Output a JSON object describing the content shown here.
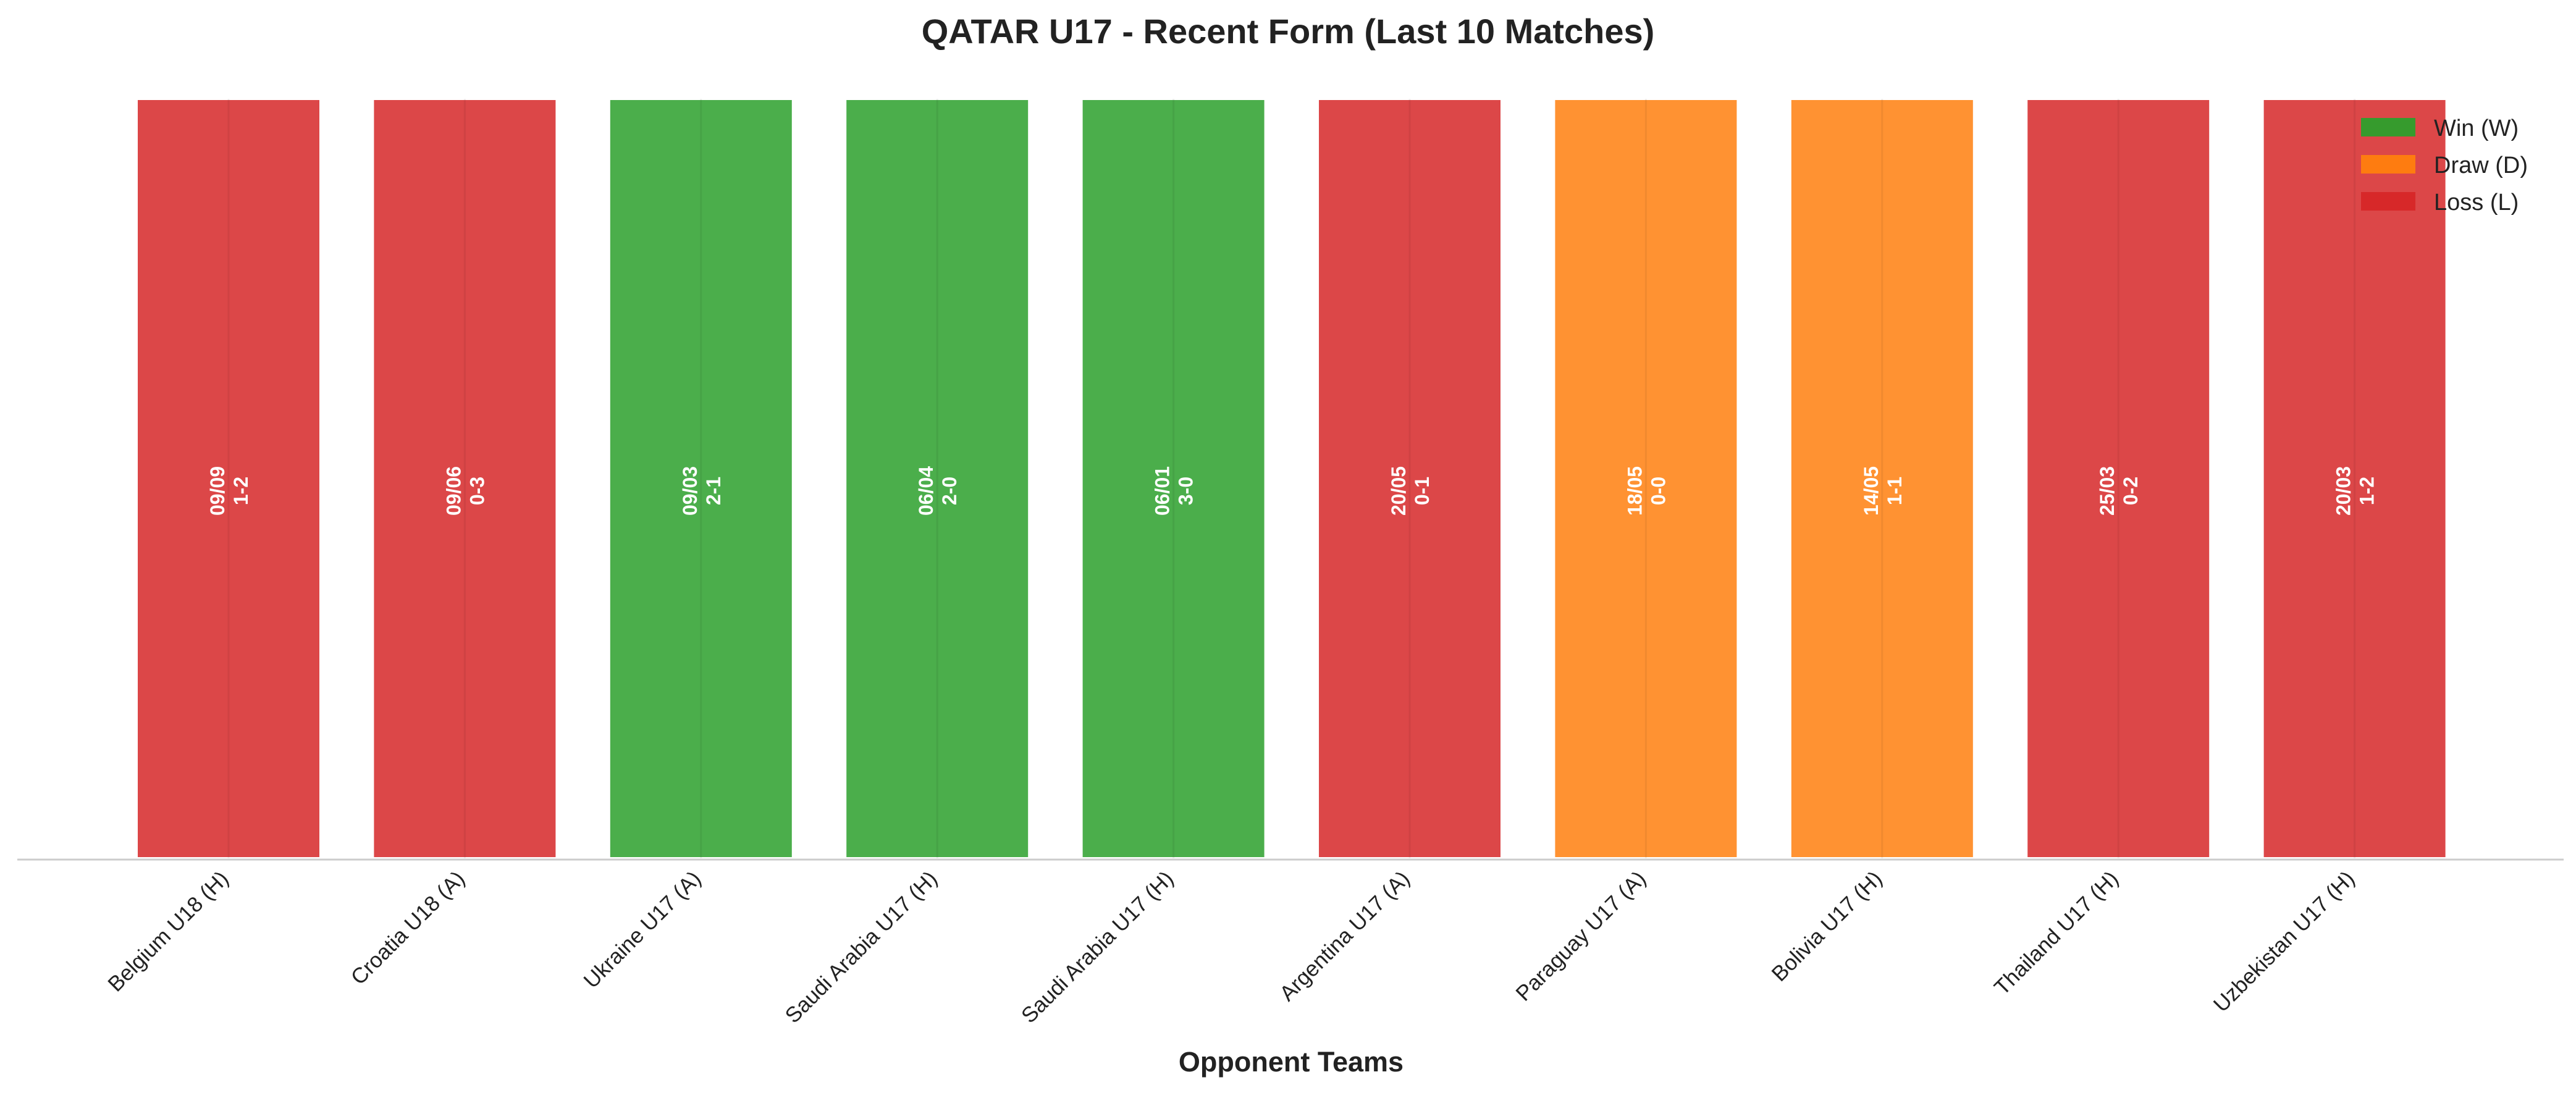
{
  "chart_data": {
    "type": "bar",
    "title": "QATAR U17 - Recent Form (Last 10 Matches)",
    "xlabel": "Opponent Teams",
    "ylabel": "",
    "grid": false,
    "legend_position": "top-right",
    "categories": [
      "Belgium U18 (H)",
      "Croatia U18 (A)",
      "Ukraine U17 (A)",
      "Saudi Arabia U17 (H)",
      "Saudi Arabia U17 (H)",
      "Argentina U17 (A)",
      "Paraguay U17 (A)",
      "Bolivia U17 (H)",
      "Thailand U17 (H)",
      "Uzbekistan U17 (H)"
    ],
    "values": [
      1,
      1,
      1,
      1,
      1,
      1,
      1,
      1,
      1,
      1
    ],
    "results": [
      "L",
      "L",
      "W",
      "W",
      "W",
      "L",
      "D",
      "D",
      "L",
      "L"
    ],
    "dates": [
      "09/09",
      "09/06",
      "09/03",
      "06/04",
      "06/01",
      "20/05",
      "18/05",
      "14/05",
      "25/03",
      "20/03"
    ],
    "scores": [
      "1-2",
      "0-3",
      "2-1",
      "2-0",
      "3-0",
      "0-1",
      "0-0",
      "1-1",
      "0-2",
      "1-2"
    ],
    "legend": [
      {
        "key": "W",
        "label": "Win (W)",
        "color": "#2ca02c"
      },
      {
        "key": "D",
        "label": "Draw (D)",
        "color": "#ff7f0e"
      },
      {
        "key": "L",
        "label": "Loss (L)",
        "color": "#d62728"
      }
    ],
    "colors": {
      "W": "#2ca02c",
      "D": "#ff7f0e",
      "L": "#d62728"
    }
  }
}
